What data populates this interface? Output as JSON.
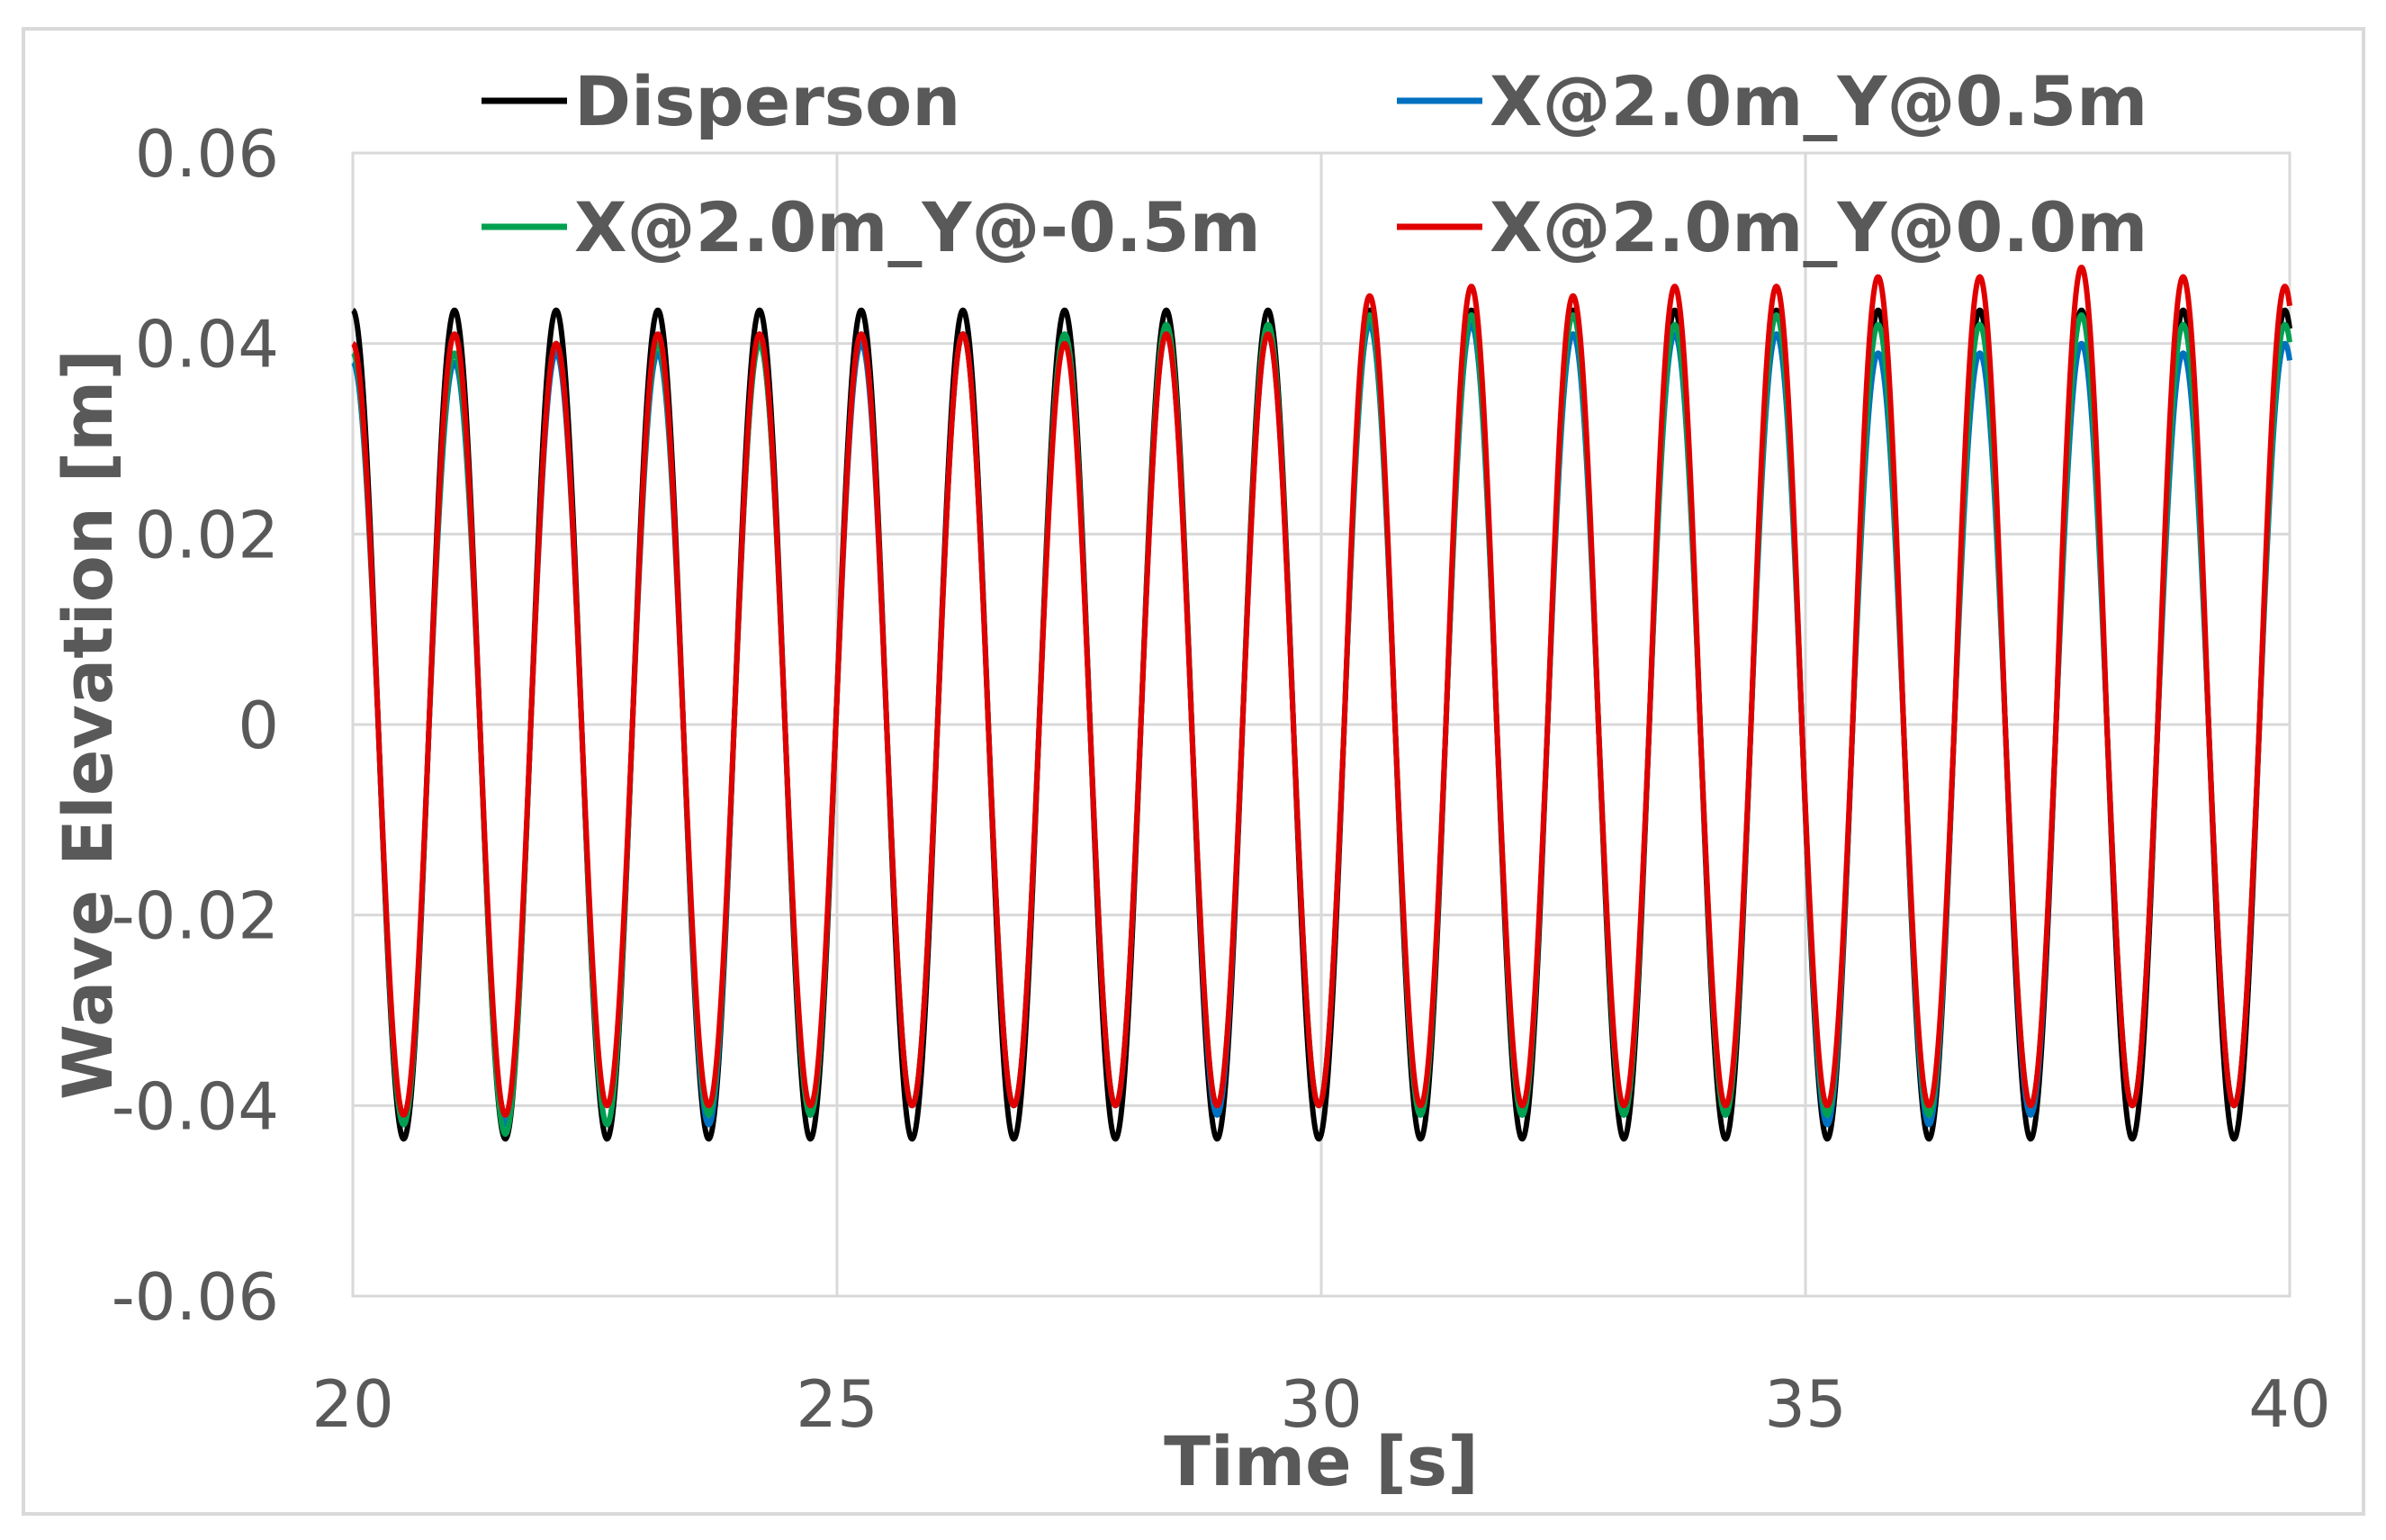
{
  "chart_data": {
    "type": "line",
    "title": "",
    "xlabel": "Time [s]",
    "ylabel": "Wave Elevation [m]",
    "xlim": [
      20,
      40
    ],
    "ylim": [
      -0.06,
      0.06
    ],
    "x_ticks": [
      20,
      25,
      30,
      35,
      40
    ],
    "x_tick_labels": [
      "20",
      "25",
      "30",
      "35",
      "40"
    ],
    "y_ticks": [
      0.06,
      0.04,
      0.02,
      0,
      -0.02,
      -0.04,
      -0.06
    ],
    "y_tick_labels": [
      "0.06",
      "0.04",
      "0.02",
      "0",
      "-0.02",
      "-0.04",
      "-0.06"
    ],
    "grid": true,
    "legend_position": "top",
    "wave_period_s": 1.05,
    "first_peak_time_s": 20.0,
    "series": [
      {
        "name": "Disperson",
        "color": "#000000",
        "peak_times": [
          20.0,
          21.05,
          22.1,
          23.15,
          24.2,
          25.25,
          26.3,
          27.35,
          28.4,
          29.45,
          30.5,
          31.55,
          32.6,
          33.65,
          34.7,
          35.75,
          36.8,
          37.85,
          38.9,
          39.95
        ],
        "peaks": [
          0.0435,
          0.0435,
          0.0435,
          0.0435,
          0.0435,
          0.0435,
          0.0435,
          0.0435,
          0.0435,
          0.0435,
          0.0435,
          0.0435,
          0.0435,
          0.0435,
          0.0435,
          0.0435,
          0.0435,
          0.0435,
          0.0435,
          0.0435
        ],
        "troughs": [
          -0.0435,
          -0.0435,
          -0.0435,
          -0.0435,
          -0.0435,
          -0.0435,
          -0.0435,
          -0.0435,
          -0.0435,
          -0.0435,
          -0.0435,
          -0.0435,
          -0.0435,
          -0.0435,
          -0.0435,
          -0.0435,
          -0.0435,
          -0.0435,
          -0.0435,
          -0.0435
        ]
      },
      {
        "name": "X@2.0m_Y@0.5m",
        "color": "#0070c0",
        "peak_times": [
          20.0,
          21.05,
          22.1,
          23.15,
          24.2,
          25.25,
          26.3,
          27.35,
          28.4,
          29.45,
          30.5,
          31.55,
          32.6,
          33.65,
          34.7,
          35.75,
          36.8,
          37.85,
          38.9,
          39.95
        ],
        "peaks": [
          0.038,
          0.038,
          0.039,
          0.039,
          0.04,
          0.04,
          0.041,
          0.041,
          0.041,
          0.041,
          0.042,
          0.042,
          0.041,
          0.041,
          0.041,
          0.039,
          0.039,
          0.04,
          0.039,
          0.04
        ],
        "troughs": [
          -0.042,
          -0.042,
          -0.042,
          -0.042,
          -0.041,
          -0.04,
          -0.04,
          -0.04,
          -0.041,
          -0.04,
          -0.041,
          -0.041,
          -0.041,
          -0.041,
          -0.042,
          -0.042,
          -0.041,
          -0.04,
          -0.04,
          -0.04
        ]
      },
      {
        "name": "X@2.0m_Y@-0.5m",
        "color": "#00a050",
        "peak_times": [
          20.0,
          21.05,
          22.1,
          23.15,
          24.2,
          25.25,
          26.3,
          27.35,
          28.4,
          29.45,
          30.5,
          31.55,
          32.6,
          33.65,
          34.7,
          35.75,
          36.8,
          37.85,
          38.9,
          39.95
        ],
        "peaks": [
          0.039,
          0.039,
          0.04,
          0.04,
          0.04,
          0.041,
          0.041,
          0.041,
          0.042,
          0.042,
          0.043,
          0.043,
          0.043,
          0.042,
          0.043,
          0.042,
          0.042,
          0.043,
          0.042,
          0.042
        ],
        "troughs": [
          -0.042,
          -0.043,
          -0.042,
          -0.041,
          -0.041,
          -0.04,
          -0.04,
          -0.04,
          -0.04,
          -0.04,
          -0.041,
          -0.041,
          -0.041,
          -0.041,
          -0.041,
          -0.041,
          -0.04,
          -0.04,
          -0.04,
          -0.04
        ]
      },
      {
        "name": "X@2.0m_Y@0.0m",
        "color": "#e00000",
        "peak_times": [
          20.0,
          21.05,
          22.1,
          23.15,
          24.2,
          25.25,
          26.3,
          27.35,
          28.4,
          29.45,
          30.5,
          31.55,
          32.6,
          33.65,
          34.7,
          35.75,
          36.8,
          37.85,
          38.9,
          39.95
        ],
        "peaks": [
          0.04,
          0.041,
          0.04,
          0.041,
          0.041,
          0.041,
          0.041,
          0.04,
          0.041,
          0.041,
          0.045,
          0.046,
          0.045,
          0.046,
          0.046,
          0.047,
          0.047,
          0.048,
          0.047,
          0.046
        ],
        "troughs": [
          -0.041,
          -0.041,
          -0.04,
          -0.04,
          -0.04,
          -0.04,
          -0.04,
          -0.04,
          -0.04,
          -0.04,
          -0.04,
          -0.04,
          -0.04,
          -0.04,
          -0.04,
          -0.04,
          -0.04,
          -0.04,
          -0.04,
          -0.039
        ]
      }
    ]
  }
}
